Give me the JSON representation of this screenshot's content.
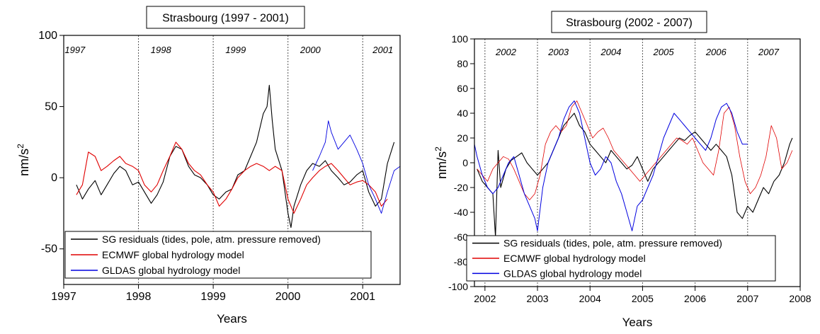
{
  "colors": {
    "sg": "#000000",
    "ecmwf": "#e00000",
    "gldas": "#0000e0",
    "axis": "#000000",
    "divider": "#555555"
  },
  "chart_data": [
    {
      "type": "line",
      "title": "Strasbourg (1997 - 2001)",
      "xlabel": "Years",
      "ylabel": "nm/s",
      "ylabel_sup": "2",
      "xlim": [
        1997.0,
        2001.5
      ],
      "ylim": [
        -75,
        100
      ],
      "x_ticks": [
        1997,
        1998,
        1999,
        2000,
        2001
      ],
      "x_tick_labels": [
        "1997",
        "1998",
        "1999",
        "2000",
        "2001"
      ],
      "y_ticks": [
        -50,
        0,
        50,
        100
      ],
      "y_tick_labels": [
        "-50",
        "0",
        "50",
        "100"
      ],
      "year_dividers": [
        1998,
        1999,
        2000,
        2001
      ],
      "year_labels": [
        {
          "text": "1997",
          "x": 1997.15
        },
        {
          "text": "1998",
          "x": 1998.3
        },
        {
          "text": "1999",
          "x": 1999.3
        },
        {
          "text": "2000",
          "x": 2000.3
        },
        {
          "text": "2001",
          "x": 2001.27
        }
      ],
      "legend": [
        "SG residuals (tides, pole, atm. pressure removed)",
        "ECMWF global hydrology model",
        "GLDAS global hydrology model"
      ],
      "legend_position": "bottom-left",
      "series": [
        {
          "name": "SG residuals (tides, pole, atm. pressure removed)",
          "color": "#000000",
          "width": 1.1,
          "x": [
            1997.17,
            1997.25,
            1997.33,
            1997.42,
            1997.5,
            1997.58,
            1997.67,
            1997.75,
            1997.83,
            1997.92,
            1998.0,
            1998.08,
            1998.17,
            1998.25,
            1998.33,
            1998.42,
            1998.5,
            1998.58,
            1998.67,
            1998.75,
            1998.83,
            1998.92,
            1999.0,
            1999.08,
            1999.17,
            1999.25,
            1999.33,
            1999.42,
            1999.5,
            1999.58,
            1999.67,
            1999.72,
            1999.75,
            1999.79,
            1999.83,
            1999.92,
            2000.0,
            2000.04,
            2000.08,
            2000.17,
            2000.25,
            2000.33,
            2000.42,
            2000.5,
            2000.58,
            2000.67,
            2000.75,
            2000.83,
            2000.92,
            2001.0,
            2001.08,
            2001.17,
            2001.25,
            2001.33,
            2001.42
          ],
          "y": [
            -5,
            -15,
            -8,
            -2,
            -12,
            -5,
            3,
            8,
            5,
            -5,
            -3,
            -10,
            -18,
            -12,
            -3,
            15,
            22,
            20,
            8,
            2,
            0,
            -5,
            -12,
            -15,
            -10,
            -8,
            2,
            5,
            15,
            25,
            45,
            50,
            65,
            40,
            20,
            5,
            -25,
            -35,
            -20,
            -5,
            5,
            10,
            8,
            12,
            5,
            0,
            -5,
            -3,
            2,
            5,
            -10,
            -20,
            -15,
            10,
            25
          ]
        },
        {
          "name": "ECMWF global hydrology model",
          "color": "#e00000",
          "width": 1.1,
          "x": [
            1997.17,
            1997.25,
            1997.33,
            1997.42,
            1997.5,
            1997.58,
            1997.67,
            1997.75,
            1997.83,
            1997.92,
            1998.0,
            1998.08,
            1998.17,
            1998.25,
            1998.33,
            1998.42,
            1998.5,
            1998.58,
            1998.67,
            1998.75,
            1998.83,
            1998.92,
            1999.0,
            1999.08,
            1999.17,
            1999.25,
            1999.33,
            1999.42,
            1999.5,
            1999.58,
            1999.67,
            1999.75,
            1999.83,
            1999.92,
            2000.0,
            2000.08,
            2000.17,
            2000.25,
            2000.33,
            2000.42,
            2000.5,
            2000.58,
            2000.67,
            2000.75,
            2000.83,
            2000.92,
            2001.0,
            2001.08,
            2001.17,
            2001.25,
            2001.33
          ],
          "y": [
            -12,
            -5,
            18,
            15,
            5,
            8,
            12,
            15,
            10,
            8,
            5,
            -5,
            -10,
            -5,
            5,
            15,
            25,
            20,
            10,
            5,
            2,
            -5,
            -10,
            -20,
            -15,
            -8,
            0,
            5,
            8,
            10,
            8,
            5,
            8,
            5,
            -15,
            -25,
            -15,
            -5,
            0,
            5,
            8,
            10,
            5,
            0,
            -5,
            -3,
            -2,
            -5,
            -10,
            -20,
            -15
          ]
        },
        {
          "name": "GLDAS global hydrology model",
          "color": "#0000e0",
          "width": 0.9,
          "x": [
            2000.33,
            2000.42,
            2000.5,
            2000.54,
            2000.58,
            2000.67,
            2000.75,
            2000.83,
            2000.92,
            2001.0,
            2001.08,
            2001.17,
            2001.25,
            2001.33,
            2001.42,
            2001.5
          ],
          "y": [
            5,
            15,
            25,
            40,
            32,
            20,
            25,
            30,
            20,
            10,
            -5,
            -15,
            -25,
            -10,
            5,
            8
          ]
        }
      ]
    },
    {
      "type": "line",
      "title": "Strasbourg (2002 - 2007)",
      "xlabel": "Years",
      "ylabel": "nm/s",
      "ylabel_sup": "2",
      "xlim": [
        2001.8,
        2008.0
      ],
      "ylim": [
        -100,
        100
      ],
      "x_ticks": [
        2002,
        2003,
        2004,
        2005,
        2006,
        2007,
        2008
      ],
      "x_tick_labels": [
        "2002",
        "2003",
        "2004",
        "2005",
        "2006",
        "2007",
        "2008"
      ],
      "y_ticks": [
        -100,
        -80,
        -60,
        -40,
        -20,
        0,
        20,
        40,
        60,
        80,
        100
      ],
      "y_tick_labels": [
        "-100",
        "-80",
        "-60",
        "-40",
        "-20",
        "0",
        "20",
        "40",
        "60",
        "80",
        "100"
      ],
      "year_dividers": [
        2002,
        2003,
        2004,
        2005,
        2006,
        2007
      ],
      "year_labels": [
        {
          "text": "2002",
          "x": 2002.4
        },
        {
          "text": "2003",
          "x": 2003.4
        },
        {
          "text": "2004",
          "x": 2004.4
        },
        {
          "text": "2005",
          "x": 2005.4
        },
        {
          "text": "2006",
          "x": 2006.4
        },
        {
          "text": "2007",
          "x": 2007.4
        }
      ],
      "legend": [
        "SG residuals (tides, pole, atm. pressure removed)",
        "ECMWF global hydrology model",
        "GLDAS global hydrology model"
      ],
      "legend_position": "bottom-left",
      "series": [
        {
          "name": "SG residuals (tides, pole, atm. pressure removed)",
          "color": "#000000",
          "width": 1.1,
          "x": [
            2001.85,
            2001.95,
            2002.05,
            2002.15,
            2002.2,
            2002.25,
            2002.3,
            2002.4,
            2002.5,
            2002.6,
            2002.7,
            2002.8,
            2002.9,
            2003.0,
            2003.1,
            2003.2,
            2003.3,
            2003.4,
            2003.5,
            2003.6,
            2003.7,
            2003.8,
            2003.9,
            2004.0,
            2004.1,
            2004.2,
            2004.3,
            2004.4,
            2004.5,
            2004.6,
            2004.7,
            2004.8,
            2004.9,
            2005.0,
            2005.1,
            2005.2,
            2005.3,
            2005.4,
            2005.5,
            2005.6,
            2005.7,
            2005.8,
            2005.9,
            2006.0,
            2006.1,
            2006.2,
            2006.3,
            2006.4,
            2006.5,
            2006.6,
            2006.7,
            2006.8,
            2006.9,
            2007.0,
            2007.1,
            2007.2,
            2007.3,
            2007.4,
            2007.5,
            2007.6,
            2007.7,
            2007.8,
            2007.85
          ],
          "y": [
            -5,
            -15,
            -20,
            -25,
            -60,
            10,
            -20,
            -5,
            2,
            5,
            8,
            0,
            -5,
            -10,
            -5,
            0,
            10,
            20,
            30,
            35,
            40,
            30,
            25,
            15,
            10,
            5,
            0,
            10,
            5,
            0,
            -5,
            -2,
            5,
            -5,
            -15,
            -5,
            0,
            5,
            10,
            15,
            20,
            18,
            22,
            25,
            20,
            15,
            10,
            15,
            10,
            5,
            -10,
            -40,
            -45,
            -35,
            -40,
            -30,
            -20,
            -25,
            -15,
            -10,
            0,
            15,
            20
          ]
        },
        {
          "name": "ECMWF global hydrology model",
          "color": "#e00000",
          "width": 0.8,
          "x": [
            2001.85,
            2001.95,
            2002.05,
            2002.15,
            2002.25,
            2002.35,
            2002.45,
            2002.55,
            2002.65,
            2002.75,
            2002.85,
            2002.95,
            2003.05,
            2003.15,
            2003.25,
            2003.35,
            2003.45,
            2003.55,
            2003.65,
            2003.75,
            2003.85,
            2003.95,
            2004.05,
            2004.15,
            2004.25,
            2004.35,
            2004.45,
            2004.55,
            2004.65,
            2004.75,
            2004.85,
            2004.95,
            2005.05,
            2005.15,
            2005.25,
            2005.35,
            2005.45,
            2005.55,
            2005.65,
            2005.75,
            2005.85,
            2005.95,
            2006.05,
            2006.15,
            2006.25,
            2006.35,
            2006.45,
            2006.55,
            2006.65,
            2006.75,
            2006.85,
            2006.95,
            2007.05,
            2007.15,
            2007.25,
            2007.35,
            2007.45,
            2007.55,
            2007.65,
            2007.75,
            2007.85
          ],
          "y": [
            -5,
            -10,
            -15,
            -5,
            0,
            5,
            3,
            -5,
            -15,
            -25,
            -30,
            -25,
            -10,
            15,
            25,
            30,
            25,
            30,
            45,
            50,
            40,
            30,
            20,
            25,
            28,
            20,
            10,
            5,
            0,
            -5,
            -10,
            -15,
            -10,
            -5,
            0,
            5,
            10,
            15,
            20,
            18,
            15,
            20,
            10,
            0,
            -5,
            -10,
            10,
            40,
            45,
            30,
            5,
            -15,
            -25,
            -20,
            -10,
            5,
            30,
            20,
            -5,
            0,
            10
          ]
        },
        {
          "name": "GLDAS global hydrology model",
          "color": "#0000e0",
          "width": 1.0,
          "x": [
            2001.8,
            2001.85,
            2001.95,
            2002.05,
            2002.15,
            2002.25,
            2002.35,
            2002.45,
            2002.55,
            2002.65,
            2002.75,
            2002.85,
            2002.95,
            2003.0,
            2003.1,
            2003.2,
            2003.3,
            2003.4,
            2003.5,
            2003.6,
            2003.7,
            2003.8,
            2003.9,
            2004.0,
            2004.1,
            2004.2,
            2004.3,
            2004.4,
            2004.5,
            2004.6,
            2004.7,
            2004.8,
            2004.85,
            2004.9,
            2005.0,
            2005.1,
            2005.2,
            2005.3,
            2005.4,
            2005.5,
            2005.6,
            2005.7,
            2005.8,
            2005.9,
            2006.0,
            2006.1,
            2006.2,
            2006.3,
            2006.4,
            2006.5,
            2006.6,
            2006.7,
            2006.8,
            2006.9,
            2007.0
          ],
          "y": [
            15,
            5,
            -10,
            -20,
            -25,
            -20,
            -10,
            0,
            5,
            -10,
            -25,
            -35,
            -45,
            -55,
            -20,
            0,
            10,
            20,
            35,
            45,
            50,
            40,
            20,
            0,
            -10,
            -5,
            5,
            0,
            -15,
            -25,
            -40,
            -55,
            -45,
            -35,
            -30,
            -20,
            -10,
            5,
            20,
            30,
            40,
            35,
            30,
            25,
            20,
            15,
            10,
            20,
            35,
            45,
            48,
            40,
            25,
            15,
            15
          ]
        }
      ]
    }
  ]
}
